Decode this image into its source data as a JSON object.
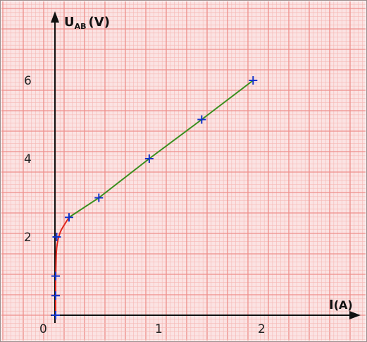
{
  "chart_data": {
    "type": "line",
    "title": "",
    "ylabel": {
      "main": "U",
      "sub": "AB",
      "unit": "(V)"
    },
    "xlabel": {
      "main": "I",
      "unit": "(A)"
    },
    "origin_label": "0",
    "xticks": [
      {
        "value": 1,
        "label": "1"
      },
      {
        "value": 2,
        "label": "2"
      }
    ],
    "yticks": [
      {
        "value": 2,
        "label": "2"
      },
      {
        "value": 4,
        "label": "4"
      },
      {
        "value": 6,
        "label": "6"
      }
    ],
    "xlim": [
      0,
      2.2
    ],
    "ylim": [
      0,
      7
    ],
    "grid": true,
    "series": [
      {
        "color": "#e0241c",
        "points": [
          [
            0,
            0
          ],
          [
            0,
            0.5
          ],
          [
            0,
            1.0
          ],
          [
            0.01,
            2.0
          ],
          [
            0.13,
            2.5
          ]
        ]
      },
      {
        "color": "#3a8f1e",
        "points": [
          [
            0.13,
            2.5
          ],
          [
            0.42,
            3.0
          ],
          [
            0.91,
            4.0
          ],
          [
            1.42,
            5.0
          ],
          [
            1.92,
            6.0
          ]
        ]
      }
    ],
    "markers": {
      "color": "#1133cc",
      "points": [
        [
          0,
          0
        ],
        [
          0,
          0.5
        ],
        [
          0,
          1.0
        ],
        [
          0.01,
          2.0
        ],
        [
          0.13,
          2.5
        ],
        [
          0.42,
          3.0
        ],
        [
          0.91,
          4.0
        ],
        [
          1.42,
          5.0
        ],
        [
          1.92,
          6.0
        ]
      ]
    },
    "colors": {
      "paper": "#fbe3e3",
      "grid_minor": "#f6b8b5",
      "grid_major": "#ee8f8a",
      "axis": "#111111"
    }
  }
}
